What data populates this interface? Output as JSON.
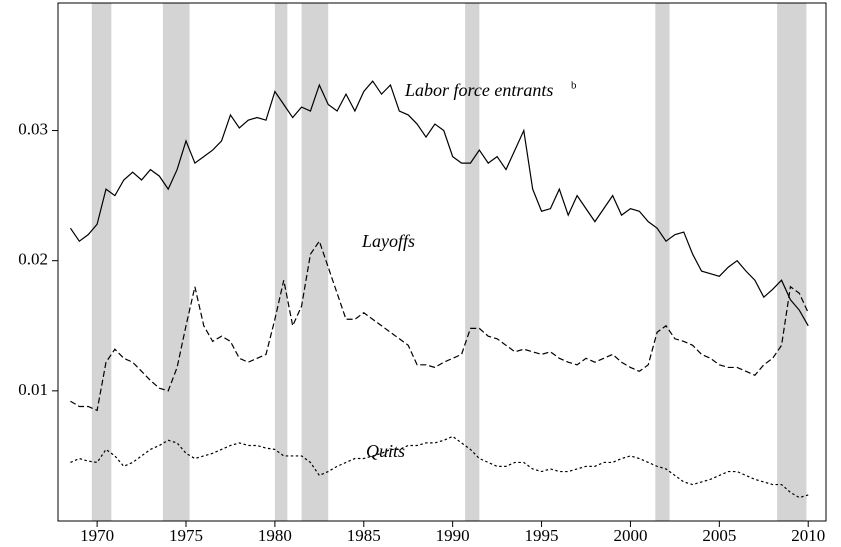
{
  "chart_data": {
    "type": "line",
    "annotations": [
      "Labor force entrants",
      "b",
      "Layoffs",
      "Quits"
    ],
    "x": [
      1968.5,
      1969,
      1969.5,
      1970,
      1970.5,
      1971,
      1971.5,
      1972,
      1972.5,
      1973,
      1973.5,
      1974,
      1974.5,
      1975,
      1975.5,
      1976,
      1976.5,
      1977,
      1977.5,
      1978,
      1978.5,
      1979,
      1979.5,
      1980,
      1980.5,
      1981,
      1981.5,
      1982,
      1982.5,
      1983,
      1983.5,
      1984,
      1984.5,
      1985,
      1985.5,
      1986,
      1986.5,
      1987,
      1987.5,
      1988,
      1988.5,
      1989,
      1989.5,
      1990,
      1990.5,
      1991,
      1991.5,
      1992,
      1992.5,
      1993,
      1993.5,
      1994,
      1994.5,
      1995,
      1995.5,
      1996,
      1996.5,
      1997,
      1997.5,
      1998,
      1998.5,
      1999,
      1999.5,
      2000,
      2000.5,
      2001,
      2001.5,
      2002,
      2002.5,
      2003,
      2003.5,
      2004,
      2004.5,
      2005,
      2005.5,
      2006,
      2006.5,
      2007,
      2007.5,
      2008,
      2008.5,
      2009,
      2009.5,
      2010
    ],
    "series": [
      {
        "name": "Labor force entrants",
        "color": "#000000",
        "style": "solid",
        "values": [
          0.0225,
          0.0215,
          0.022,
          0.0228,
          0.0255,
          0.025,
          0.0262,
          0.0268,
          0.0262,
          0.027,
          0.0265,
          0.0255,
          0.027,
          0.0292,
          0.0275,
          0.028,
          0.0285,
          0.0292,
          0.0312,
          0.0302,
          0.0308,
          0.031,
          0.0308,
          0.033,
          0.032,
          0.031,
          0.0318,
          0.0315,
          0.0335,
          0.032,
          0.0315,
          0.0328,
          0.0315,
          0.033,
          0.0338,
          0.0328,
          0.0335,
          0.0315,
          0.0312,
          0.0305,
          0.0295,
          0.0305,
          0.03,
          0.028,
          0.0275,
          0.0275,
          0.0285,
          0.0275,
          0.028,
          0.027,
          0.0285,
          0.03,
          0.0255,
          0.0238,
          0.024,
          0.0255,
          0.0235,
          0.025,
          0.024,
          0.023,
          0.024,
          0.025,
          0.0235,
          0.024,
          0.0238,
          0.023,
          0.0225,
          0.0215,
          0.022,
          0.0222,
          0.0205,
          0.0192,
          0.019,
          0.0188,
          0.0195,
          0.02,
          0.0192,
          0.0185,
          0.0172,
          0.0178,
          0.0185,
          0.017,
          0.0162,
          0.015
        ]
      },
      {
        "name": "Layoffs",
        "color": "#000000",
        "style": "dashed",
        "values": [
          0.0092,
          0.0088,
          0.0088,
          0.0085,
          0.0122,
          0.0132,
          0.0125,
          0.0122,
          0.0115,
          0.0108,
          0.0102,
          0.01,
          0.0118,
          0.015,
          0.018,
          0.015,
          0.0138,
          0.0142,
          0.0138,
          0.0125,
          0.0122,
          0.0125,
          0.0128,
          0.0155,
          0.0185,
          0.015,
          0.0165,
          0.0205,
          0.0215,
          0.0195,
          0.0175,
          0.0155,
          0.0155,
          0.016,
          0.0155,
          0.015,
          0.0145,
          0.014,
          0.0135,
          0.012,
          0.012,
          0.0118,
          0.0122,
          0.0125,
          0.0128,
          0.0148,
          0.0148,
          0.0142,
          0.014,
          0.0135,
          0.013,
          0.0132,
          0.013,
          0.0128,
          0.013,
          0.0125,
          0.0122,
          0.012,
          0.0125,
          0.0122,
          0.0125,
          0.0128,
          0.0122,
          0.0118,
          0.0115,
          0.012,
          0.0145,
          0.015,
          0.014,
          0.0138,
          0.0135,
          0.0128,
          0.0125,
          0.012,
          0.0118,
          0.0118,
          0.0115,
          0.0112,
          0.012,
          0.0125,
          0.0135,
          0.018,
          0.0175,
          0.016
        ]
      },
      {
        "name": "Quits",
        "color": "#000000",
        "style": "dotted",
        "values": [
          0.0045,
          0.0048,
          0.0046,
          0.0045,
          0.0055,
          0.005,
          0.0042,
          0.0045,
          0.005,
          0.0055,
          0.0058,
          0.0062,
          0.006,
          0.0052,
          0.0048,
          0.005,
          0.0052,
          0.0055,
          0.0058,
          0.006,
          0.0058,
          0.0058,
          0.0056,
          0.0055,
          0.005,
          0.005,
          0.005,
          0.0045,
          0.0035,
          0.0038,
          0.0042,
          0.0045,
          0.0048,
          0.0048,
          0.005,
          0.0052,
          0.0055,
          0.0055,
          0.0058,
          0.0058,
          0.006,
          0.006,
          0.0062,
          0.0065,
          0.006,
          0.0055,
          0.0048,
          0.0045,
          0.0042,
          0.0042,
          0.0045,
          0.0045,
          0.004,
          0.0038,
          0.004,
          0.0038,
          0.0038,
          0.004,
          0.0042,
          0.0042,
          0.0045,
          0.0045,
          0.0048,
          0.005,
          0.0048,
          0.0045,
          0.0042,
          0.004,
          0.0035,
          0.003,
          0.0028,
          0.003,
          0.0032,
          0.0035,
          0.0038,
          0.0038,
          0.0035,
          0.0032,
          0.003,
          0.0028,
          0.0028,
          0.0022,
          0.0018,
          0.002
        ]
      }
    ],
    "recessions": [
      [
        1969.7,
        1970.8
      ],
      [
        1973.7,
        1975.2
      ],
      [
        1980.0,
        1980.7
      ],
      [
        1981.5,
        1983.0
      ],
      [
        1990.7,
        1991.5
      ],
      [
        2001.4,
        2002.2
      ],
      [
        2008.25,
        2009.9
      ]
    ],
    "recession_color": "#d4d4d4",
    "xlim": [
      1967.8,
      2011
    ],
    "xticks": [
      1970,
      1975,
      1980,
      1985,
      1990,
      1995,
      2000,
      2005,
      2010
    ],
    "ylim": [
      0,
      0.0398
    ],
    "yticks": [
      0.01,
      0.02,
      0.03
    ]
  }
}
